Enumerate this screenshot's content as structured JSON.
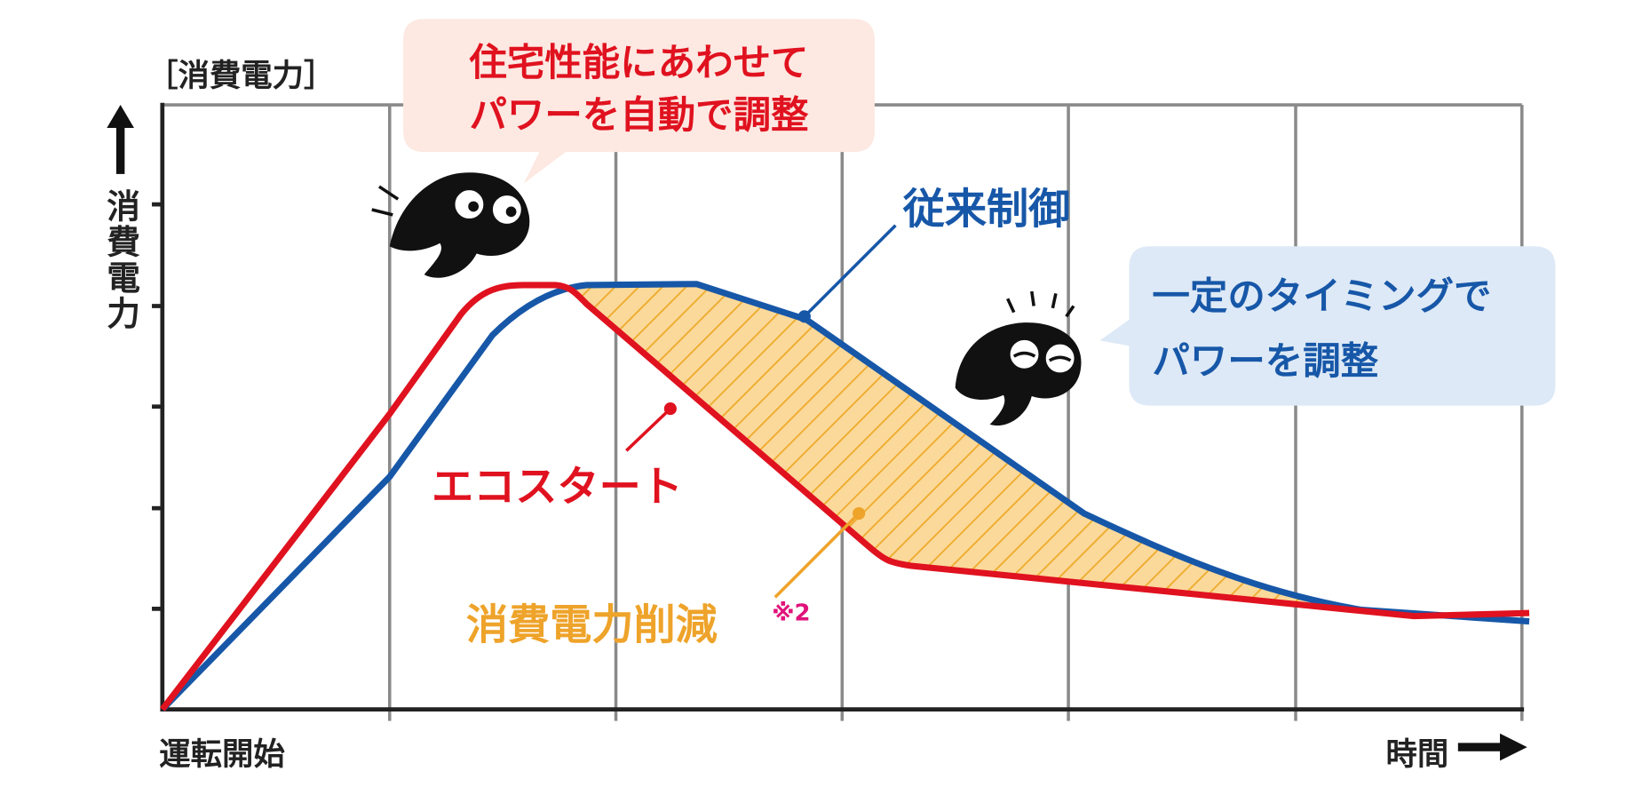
{
  "axis": {
    "y_label_bracket": "［消費電力］",
    "y_label": "消費電力",
    "x_start": "運転開始",
    "x_end": "時間"
  },
  "callouts": [
    {
      "lines": [
        "住宅性能にあわせて",
        "パワーを自動で調整"
      ]
    },
    {
      "lines": [
        "一定のタイミングで",
        "パワーを調整"
      ]
    }
  ],
  "labels": {
    "conventional": "従来制御",
    "eco_start": "エコスタート",
    "reduction": "消費電力削減",
    "reduction_note": "※2"
  }
}
